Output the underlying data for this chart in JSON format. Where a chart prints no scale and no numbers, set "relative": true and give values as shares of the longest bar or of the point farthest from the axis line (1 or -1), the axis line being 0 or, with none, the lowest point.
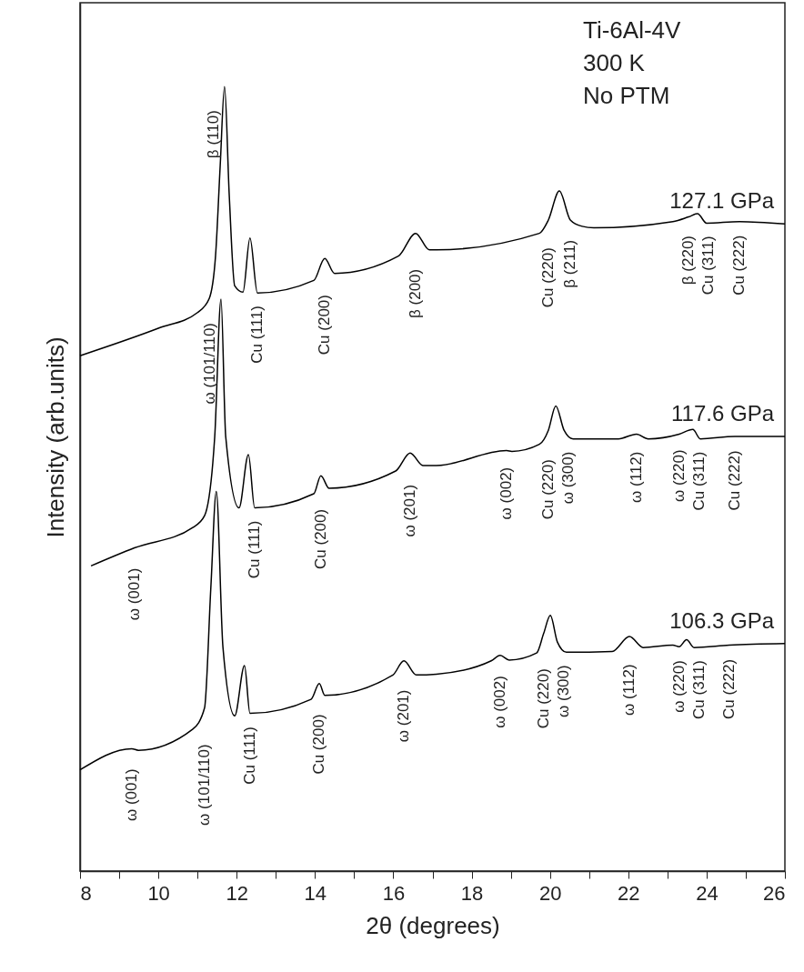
{
  "chart_data": {
    "type": "line",
    "relative": true,
    "xlabel": "2θ (degrees)",
    "ylabel": "Intensity (arb.units)",
    "xlim": [
      8,
      26
    ],
    "xticks": [
      8,
      {
        "value": 9,
        "label": null
      },
      10,
      {
        "value": 11,
        "label": null
      },
      12,
      {
        "value": 13,
        "label": null
      },
      14,
      {
        "value": 15,
        "label": null
      },
      16,
      {
        "value": 17,
        "label": null
      },
      18,
      {
        "value": 19,
        "label": null
      },
      20,
      {
        "value": 21,
        "label": null
      },
      22,
      {
        "value": 23,
        "label": null
      },
      24,
      {
        "value": 25,
        "label": null
      },
      26
    ],
    "grid": false,
    "legend": false,
    "marker": "none",
    "line_style": "solid",
    "series": [
      {
        "name": "127.1 GPa",
        "color": "#000000",
        "x": [
          8,
          10,
          11,
          11.3,
          11.46,
          11.58,
          11.69,
          11.81,
          11.95,
          12.16,
          12.34,
          12.53,
          13.97,
          14.25,
          14.5,
          16.13,
          16.57,
          16.92,
          17.1,
          19.73,
          19.96,
          20.24,
          20.52,
          20.82,
          21.12,
          23.14,
          23.54,
          23.77,
          24.0,
          24.84,
          26
        ],
        "values": [
          0.657,
          0.692,
          0.712,
          0.73,
          0.784,
          0.9,
          1.0,
          0.862,
          0.746,
          0.738,
          0.807,
          0.737,
          0.753,
          0.781,
          0.762,
          0.784,
          0.813,
          0.792,
          0.792,
          0.813,
          0.83,
          0.867,
          0.83,
          0.822,
          0.82,
          0.828,
          0.834,
          0.838,
          0.826,
          0.828,
          0.825
        ]
      },
      {
        "name": "117.6 GPa",
        "color": "#000000",
        "x": [
          8.28,
          9.39,
          10.88,
          11.18,
          11.44,
          11.6,
          11.72,
          12.06,
          12.3,
          12.46,
          13.97,
          14.15,
          14.36,
          16.06,
          16.43,
          16.76,
          17.1,
          18.89,
          19.03,
          19.73,
          19.96,
          20.15,
          20.36,
          20.59,
          21.75,
          22.21,
          22.51,
          23.3,
          23.65,
          23.84,
          24.72,
          26
        ],
        "values": [
          0.389,
          0.412,
          0.438,
          0.453,
          0.554,
          0.729,
          0.554,
          0.463,
          0.531,
          0.463,
          0.481,
          0.504,
          0.488,
          0.51,
          0.533,
          0.517,
          0.517,
          0.536,
          0.535,
          0.544,
          0.562,
          0.593,
          0.562,
          0.551,
          0.551,
          0.557,
          0.551,
          0.557,
          0.563,
          0.551,
          0.554,
          0.554
        ]
      },
      {
        "name": "106.3 GPa",
        "color": "#000000",
        "x": [
          8,
          9.32,
          9.49,
          10.88,
          11.18,
          11.34,
          11.48,
          11.65,
          11.95,
          12.2,
          12.34,
          13.9,
          14.11,
          14.25,
          15.99,
          16.27,
          16.59,
          17.1,
          18.5,
          18.73,
          18.96,
          19.66,
          19.84,
          20.01,
          20.19,
          20.42,
          21.59,
          22.03,
          22.38,
          23.14,
          23.3,
          23.49,
          23.68,
          24.58,
          26
        ],
        "values": [
          0.129,
          0.156,
          0.154,
          0.181,
          0.208,
          0.361,
          0.484,
          0.285,
          0.198,
          0.262,
          0.201,
          0.219,
          0.239,
          0.224,
          0.25,
          0.268,
          0.25,
          0.251,
          0.268,
          0.275,
          0.269,
          0.278,
          0.303,
          0.326,
          0.292,
          0.279,
          0.28,
          0.299,
          0.285,
          0.288,
          0.286,
          0.295,
          0.285,
          0.288,
          0.29
        ]
      }
    ],
    "annotations": [
      "Ti-6Al-4V",
      "300 K",
      "No PTM",
      {
        "text": "β (110)",
        "x": 11.69,
        "y": 1.0
      },
      {
        "text": "Cu (111)",
        "x": 12.53,
        "y": 0.737
      },
      {
        "text": "Cu (200)",
        "x": 14.25,
        "y": 0.781
      },
      {
        "text": "β (200)",
        "x": 16.57,
        "y": 0.813
      },
      {
        "text": "Cu (220)",
        "x": 19.96,
        "y": 0.83
      },
      {
        "text": "β (211)",
        "x": 20.52,
        "y": 0.83
      },
      {
        "text": "β (220)",
        "x": 23.54,
        "y": 0.834
      },
      {
        "text": "Cu (311)",
        "x": 23.77,
        "y": 0.838
      },
      {
        "text": "Cu (222)",
        "x": 24.84,
        "y": 0.828
      },
      {
        "text": "ω (101/110)",
        "x": 11.6,
        "y": 0.729
      },
      {
        "text": "ω (001)",
        "x": 9.39,
        "y": 0.412
      },
      {
        "text": "Cu (111)",
        "x": 12.46,
        "y": 0.463
      },
      {
        "text": "Cu (200)",
        "x": 14.15,
        "y": 0.504
      },
      {
        "text": "ω (201)",
        "x": 16.43,
        "y": 0.533
      },
      {
        "text": "ω (002)",
        "x": 18.89,
        "y": 0.536
      },
      {
        "text": "Cu (220)",
        "x": 19.96,
        "y": 0.562
      },
      {
        "text": "ω (300)",
        "x": 20.36,
        "y": 0.562
      },
      {
        "text": "ω (112)",
        "x": 22.21,
        "y": 0.557
      },
      {
        "text": "ω (220)",
        "x": 23.3,
        "y": 0.557
      },
      {
        "text": "Cu (311)",
        "x": 23.65,
        "y": 0.563
      },
      {
        "text": "Cu (222)",
        "x": 24.72,
        "y": 0.554
      },
      {
        "text": "ω (001)",
        "x": 9.32,
        "y": 0.156
      },
      {
        "text": "ω (101/110)",
        "x": 11.18,
        "y": 0.208
      },
      {
        "text": "Cu (111)",
        "x": 12.34,
        "y": 0.201
      },
      {
        "text": "Cu (200)",
        "x": 14.11,
        "y": 0.239
      },
      {
        "text": "ω (201)",
        "x": 16.27,
        "y": 0.268
      },
      {
        "text": "ω (002)",
        "x": 18.73,
        "y": 0.275
      },
      {
        "text": "Cu (220)",
        "x": 19.84,
        "y": 0.303
      },
      {
        "text": "ω (300)",
        "x": 20.19,
        "y": 0.292
      },
      {
        "text": "ω (112)",
        "x": 22.03,
        "y": 0.299
      },
      {
        "text": "ω (220)",
        "x": 23.3,
        "y": 0.286
      },
      {
        "text": "Cu (311)",
        "x": 23.49,
        "y": 0.295
      },
      {
        "text": "Cu (222)",
        "x": 24.58,
        "y": 0.288
      }
    ]
  }
}
